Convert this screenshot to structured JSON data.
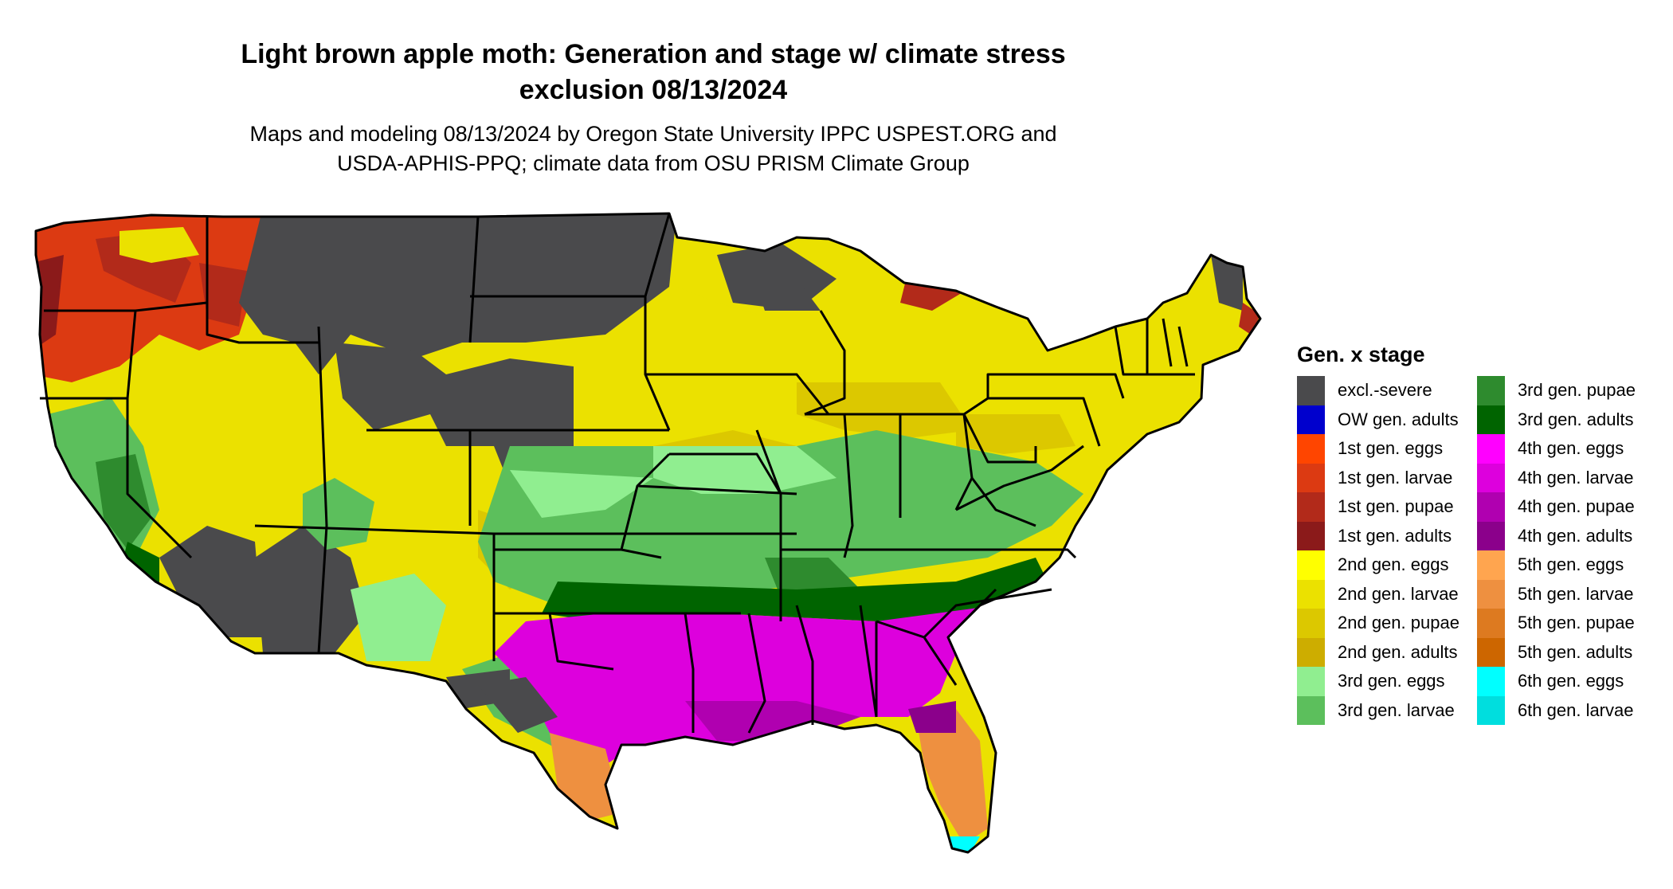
{
  "title_line1": "Light brown apple moth: Generation and stage w/ climate stress",
  "title_line2": "exclusion 08/13/2024",
  "subtitle_line1": "Maps and modeling 08/13/2024 by Oregon State University IPPC USPEST.ORG and",
  "subtitle_line2": "USDA-APHIS-PPQ; climate data from OSU PRISM Climate Group",
  "legend": {
    "title": "Gen. x stage",
    "items": [
      {
        "label": "excl.-severe",
        "color": "#4a4a4c"
      },
      {
        "label": "OW gen. adults",
        "color": "#0000cd"
      },
      {
        "label": "1st gen. eggs",
        "color": "#ff4500"
      },
      {
        "label": "1st gen. larvae",
        "color": "#dc3a12"
      },
      {
        "label": "1st gen. pupae",
        "color": "#b22a1a"
      },
      {
        "label": "1st gen. adults",
        "color": "#8b1a1a"
      },
      {
        "label": "2nd gen. eggs",
        "color": "#ffff00"
      },
      {
        "label": "2nd gen. larvae",
        "color": "#ebe100"
      },
      {
        "label": "2nd gen. pupae",
        "color": "#dcc800"
      },
      {
        "label": "2nd gen. adults",
        "color": "#cdad00"
      },
      {
        "label": "3rd gen. eggs",
        "color": "#90ee90"
      },
      {
        "label": "3rd gen. larvae",
        "color": "#5cbf5c"
      },
      {
        "label": "3rd gen. pupae",
        "color": "#2e8b2e"
      },
      {
        "label": "3rd gen. adults",
        "color": "#006400"
      },
      {
        "label": "4th gen. eggs",
        "color": "#ff00ff"
      },
      {
        "label": "4th gen. larvae",
        "color": "#dd00dd"
      },
      {
        "label": "4th gen. pupae",
        "color": "#b000b0"
      },
      {
        "label": "4th gen. adults",
        "color": "#8b008b"
      },
      {
        "label": "5th gen. eggs",
        "color": "#ffa54f"
      },
      {
        "label": "5th gen. larvae",
        "color": "#ee9040"
      },
      {
        "label": "5th gen. pupae",
        "color": "#dd7a20"
      },
      {
        "label": "5th gen. adults",
        "color": "#cd6600"
      },
      {
        "label": "6th gen. eggs",
        "color": "#00ffff"
      },
      {
        "label": "6th gen. larvae",
        "color": "#00dede"
      }
    ]
  },
  "map": {
    "state_borders": "black",
    "regions": [
      {
        "name": "pacific-northwest",
        "stage": "1st gen. larvae / pupae"
      },
      {
        "name": "northern-rockies-plains",
        "stage": "excl.-severe"
      },
      {
        "name": "great-basin",
        "stage": "2nd gen. larvae"
      },
      {
        "name": "northeast-midwest",
        "stage": "2nd gen. larvae"
      },
      {
        "name": "central-band",
        "stage": "3rd gen. eggs / larvae"
      },
      {
        "name": "southeast",
        "stage": "4th gen. larvae"
      },
      {
        "name": "southwest-desert",
        "stage": "excl.-severe"
      },
      {
        "name": "florida-south-texas",
        "stage": "5th gen. larvae"
      },
      {
        "name": "florida-keys",
        "stage": "6th gen. eggs"
      }
    ]
  }
}
